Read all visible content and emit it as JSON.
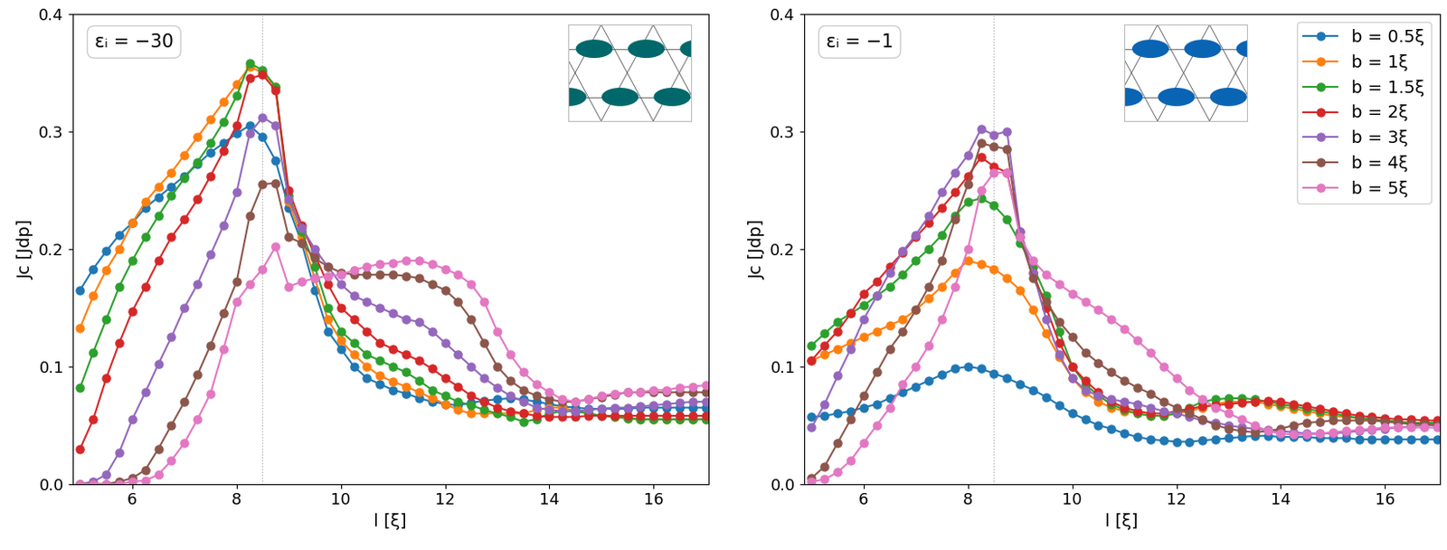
{
  "chart_data": [
    {
      "type": "line",
      "annotation": "εᵢ = −30",
      "x_label": "l [ξ]",
      "y_label": "Jc [Jdp]",
      "marker": "o",
      "line_style": "solid",
      "reference_x": 8.5,
      "xlim": [
        4.85,
        17.05
      ],
      "ylim": [
        0,
        0.4
      ],
      "xticks": [
        6,
        8,
        10,
        12,
        14,
        16
      ],
      "yticks": [
        {
          "value": 0,
          "label": "0.0"
        },
        {
          "value": 0.1,
          "label": "0.1"
        },
        {
          "value": 0.2,
          "label": "0.2"
        },
        {
          "value": 0.3,
          "label": "0.3"
        },
        {
          "value": 0.4,
          "label": "0.4"
        }
      ],
      "x": [
        5,
        5.25,
        5.5,
        5.75,
        6,
        6.25,
        6.5,
        6.75,
        7,
        7.25,
        7.5,
        7.75,
        8,
        8.25,
        8.5,
        8.75,
        9,
        9.25,
        9.5,
        9.75,
        10,
        10.25,
        10.5,
        10.75,
        11,
        11.25,
        11.5,
        11.75,
        12,
        12.25,
        12.5,
        12.75,
        13,
        13.25,
        13.5,
        13.75,
        14,
        14.25,
        14.5,
        14.75,
        15,
        15.25,
        15.5,
        15.75,
        16,
        16.25,
        16.5,
        16.75,
        17
      ],
      "series": [
        {
          "color": "#1f77b4",
          "values": [
            0.165,
            0.183,
            0.198,
            0.212,
            0.222,
            0.235,
            0.244,
            0.253,
            0.262,
            0.272,
            0.282,
            0.29,
            0.298,
            0.305,
            0.295,
            0.275,
            0.235,
            0.205,
            0.165,
            0.13,
            0.115,
            0.1,
            0.09,
            0.085,
            0.08,
            0.077,
            0.073,
            0.07,
            0.068,
            0.067,
            0.069,
            0.071,
            0.072,
            0.073,
            0.072,
            0.07,
            0.068,
            0.066,
            0.065,
            0.064,
            0.064,
            0.064,
            0.064,
            0.065,
            0.065,
            0.065,
            0.065,
            0.065,
            0.065
          ]
        },
        {
          "color": "#ff7f0e",
          "values": [
            0.133,
            0.16,
            0.182,
            0.2,
            0.222,
            0.24,
            0.253,
            0.265,
            0.28,
            0.295,
            0.31,
            0.325,
            0.34,
            0.355,
            0.35,
            0.338,
            0.24,
            0.21,
            0.175,
            0.14,
            0.122,
            0.11,
            0.1,
            0.092,
            0.087,
            0.083,
            0.078,
            0.073,
            0.068,
            0.063,
            0.06,
            0.06,
            0.06,
            0.06,
            0.06,
            0.063,
            0.065,
            0.065,
            0.062,
            0.06,
            0.058,
            0.057,
            0.056,
            0.055,
            0.055,
            0.055,
            0.055,
            0.055,
            0.055
          ]
        },
        {
          "color": "#2ca02c",
          "values": [
            0.082,
            0.112,
            0.14,
            0.168,
            0.19,
            0.21,
            0.228,
            0.245,
            0.26,
            0.274,
            0.29,
            0.308,
            0.33,
            0.358,
            0.352,
            0.338,
            0.245,
            0.215,
            0.185,
            0.15,
            0.13,
            0.12,
            0.11,
            0.105,
            0.1,
            0.095,
            0.088,
            0.08,
            0.075,
            0.07,
            0.067,
            0.063,
            0.06,
            0.057,
            0.053,
            0.055,
            0.06,
            0.062,
            0.062,
            0.06,
            0.058,
            0.057,
            0.056,
            0.055,
            0.055,
            0.055,
            0.055,
            0.055,
            0.055
          ]
        },
        {
          "color": "#d62728",
          "values": [
            0.03,
            0.055,
            0.09,
            0.12,
            0.147,
            0.168,
            0.19,
            0.21,
            0.225,
            0.242,
            0.262,
            0.283,
            0.305,
            0.345,
            0.348,
            0.335,
            0.25,
            0.22,
            0.195,
            0.17,
            0.15,
            0.14,
            0.13,
            0.12,
            0.115,
            0.11,
            0.105,
            0.098,
            0.09,
            0.083,
            0.075,
            0.07,
            0.065,
            0.062,
            0.06,
            0.058,
            0.057,
            0.057,
            0.057,
            0.058,
            0.058,
            0.058,
            0.058,
            0.058,
            0.058,
            0.058,
            0.058,
            0.058,
            0.058
          ]
        },
        {
          "color": "#9467bd",
          "values": [
            0.0,
            0.002,
            0.008,
            0.027,
            0.055,
            0.078,
            0.102,
            0.125,
            0.15,
            0.17,
            0.195,
            0.22,
            0.248,
            0.298,
            0.312,
            0.305,
            0.242,
            0.218,
            0.2,
            0.185,
            0.17,
            0.16,
            0.155,
            0.15,
            0.145,
            0.14,
            0.138,
            0.13,
            0.12,
            0.11,
            0.1,
            0.09,
            0.082,
            0.075,
            0.07,
            0.065,
            0.063,
            0.062,
            0.062,
            0.063,
            0.064,
            0.065,
            0.065,
            0.066,
            0.067,
            0.068,
            0.069,
            0.07,
            0.07
          ]
        },
        {
          "color": "#8c564b",
          "values": [
            0.0,
            0.0,
            0.0,
            0.002,
            0.005,
            0.012,
            0.03,
            0.05,
            0.07,
            0.093,
            0.118,
            0.145,
            0.172,
            0.228,
            0.255,
            0.256,
            0.21,
            0.205,
            0.192,
            0.185,
            0.18,
            0.178,
            0.178,
            0.178,
            0.178,
            0.177,
            0.175,
            0.17,
            0.165,
            0.155,
            0.14,
            0.12,
            0.1,
            0.088,
            0.08,
            0.075,
            0.072,
            0.07,
            0.07,
            0.072,
            0.074,
            0.076,
            0.078,
            0.078,
            0.078,
            0.078,
            0.078,
            0.078,
            0.078
          ]
        },
        {
          "color": "#e377c2",
          "values": [
            0.0,
            0.0,
            0.0,
            0.0,
            0.002,
            0.003,
            0.008,
            0.02,
            0.035,
            0.055,
            0.077,
            0.115,
            0.155,
            0.17,
            0.183,
            0.202,
            0.168,
            0.172,
            0.175,
            0.177,
            0.178,
            0.182,
            0.185,
            0.187,
            0.188,
            0.19,
            0.19,
            0.187,
            0.183,
            0.178,
            0.17,
            0.155,
            0.13,
            0.11,
            0.095,
            0.085,
            0.078,
            0.072,
            0.07,
            0.072,
            0.075,
            0.077,
            0.078,
            0.078,
            0.08,
            0.08,
            0.082,
            0.083,
            0.084
          ]
        }
      ]
    },
    {
      "type": "line",
      "annotation": "εᵢ = −1",
      "x_label": "l [ξ]",
      "y_label": "Jc [Jdp]",
      "marker": "o",
      "line_style": "solid",
      "reference_x": 8.5,
      "legend": "upper right",
      "xlim": [
        4.85,
        17.05
      ],
      "ylim": [
        0,
        0.4
      ],
      "xticks": [
        6,
        8,
        10,
        12,
        14,
        16
      ],
      "yticks": [
        {
          "value": 0,
          "label": "0.0"
        },
        {
          "value": 0.1,
          "label": "0.1"
        },
        {
          "value": 0.2,
          "label": "0.2"
        },
        {
          "value": 0.3,
          "label": "0.3"
        },
        {
          "value": 0.4,
          "label": "0.4"
        }
      ],
      "x": [
        5,
        5.25,
        5.5,
        5.75,
        6,
        6.25,
        6.5,
        6.75,
        7,
        7.25,
        7.5,
        7.75,
        8,
        8.25,
        8.5,
        8.75,
        9,
        9.25,
        9.5,
        9.75,
        10,
        10.25,
        10.5,
        10.75,
        11,
        11.25,
        11.5,
        11.75,
        12,
        12.25,
        12.5,
        12.75,
        13,
        13.25,
        13.5,
        13.75,
        14,
        14.25,
        14.5,
        14.75,
        15,
        15.25,
        15.5,
        15.75,
        16,
        16.25,
        16.5,
        16.75,
        17
      ],
      "series": [
        {
          "name": "b = 0.5ξ",
          "color": "#1f77b4",
          "values": [
            0.057,
            0.058,
            0.06,
            0.062,
            0.065,
            0.068,
            0.073,
            0.078,
            0.083,
            0.088,
            0.093,
            0.098,
            0.1,
            0.098,
            0.094,
            0.09,
            0.085,
            0.08,
            0.074,
            0.067,
            0.06,
            0.055,
            0.05,
            0.047,
            0.043,
            0.04,
            0.038,
            0.037,
            0.036,
            0.036,
            0.037,
            0.038,
            0.039,
            0.04,
            0.041,
            0.041,
            0.04,
            0.04,
            0.04,
            0.039,
            0.039,
            0.039,
            0.038,
            0.038,
            0.038,
            0.038,
            0.038,
            0.038,
            0.038
          ]
        },
        {
          "name": "b = 1ξ",
          "color": "#ff7f0e",
          "values": [
            0.105,
            0.11,
            0.115,
            0.12,
            0.125,
            0.13,
            0.135,
            0.14,
            0.148,
            0.158,
            0.168,
            0.18,
            0.19,
            0.187,
            0.183,
            0.175,
            0.165,
            0.148,
            0.128,
            0.108,
            0.09,
            0.078,
            0.07,
            0.065,
            0.062,
            0.06,
            0.058,
            0.058,
            0.06,
            0.062,
            0.065,
            0.068,
            0.07,
            0.07,
            0.07,
            0.068,
            0.066,
            0.064,
            0.062,
            0.06,
            0.058,
            0.057,
            0.056,
            0.055,
            0.054,
            0.053,
            0.052,
            0.052,
            0.052
          ]
        },
        {
          "name": "b = 1.5ξ",
          "color": "#2ca02c",
          "values": [
            0.118,
            0.128,
            0.138,
            0.145,
            0.152,
            0.16,
            0.168,
            0.178,
            0.19,
            0.2,
            0.212,
            0.228,
            0.24,
            0.243,
            0.237,
            0.225,
            0.205,
            0.185,
            0.16,
            0.13,
            0.1,
            0.085,
            0.075,
            0.068,
            0.063,
            0.06,
            0.058,
            0.058,
            0.06,
            0.065,
            0.07,
            0.072,
            0.073,
            0.073,
            0.072,
            0.07,
            0.068,
            0.066,
            0.064,
            0.062,
            0.06,
            0.058,
            0.056,
            0.055,
            0.054,
            0.053,
            0.052,
            0.052,
            0.052
          ]
        },
        {
          "name": "b = 2ξ",
          "color": "#d62728",
          "values": [
            0.105,
            0.118,
            0.13,
            0.145,
            0.162,
            0.172,
            0.185,
            0.197,
            0.21,
            0.222,
            0.235,
            0.248,
            0.262,
            0.278,
            0.27,
            0.265,
            0.215,
            0.18,
            0.15,
            0.12,
            0.1,
            0.088,
            0.078,
            0.07,
            0.065,
            0.062,
            0.06,
            0.06,
            0.062,
            0.064,
            0.066,
            0.067,
            0.068,
            0.069,
            0.07,
            0.071,
            0.07,
            0.068,
            0.066,
            0.064,
            0.062,
            0.06,
            0.058,
            0.057,
            0.056,
            0.055,
            0.055,
            0.054,
            0.054
          ]
        },
        {
          "name": "b = 3ξ",
          "color": "#9467bd",
          "values": [
            0.048,
            0.068,
            0.092,
            0.115,
            0.14,
            0.16,
            0.18,
            0.198,
            0.212,
            0.228,
            0.248,
            0.265,
            0.28,
            0.302,
            0.297,
            0.3,
            0.215,
            0.18,
            0.14,
            0.11,
            0.09,
            0.08,
            0.075,
            0.072,
            0.07,
            0.068,
            0.065,
            0.062,
            0.06,
            0.057,
            0.054,
            0.052,
            0.05,
            0.048,
            0.047,
            0.046,
            0.045,
            0.044,
            0.043,
            0.043,
            0.043,
            0.044,
            0.045,
            0.046,
            0.047,
            0.048,
            0.049,
            0.05,
            0.05
          ]
        },
        {
          "name": "b = 4ξ",
          "color": "#8c564b",
          "values": [
            0.005,
            0.015,
            0.035,
            0.055,
            0.075,
            0.095,
            0.115,
            0.13,
            0.148,
            0.168,
            0.19,
            0.225,
            0.255,
            0.29,
            0.287,
            0.285,
            0.21,
            0.175,
            0.155,
            0.138,
            0.125,
            0.112,
            0.103,
            0.095,
            0.088,
            0.082,
            0.077,
            0.07,
            0.065,
            0.06,
            0.055,
            0.05,
            0.047,
            0.045,
            0.044,
            0.045,
            0.047,
            0.05,
            0.052,
            0.053,
            0.054,
            0.054,
            0.054,
            0.054,
            0.053,
            0.052,
            0.051,
            0.051,
            0.05
          ]
        },
        {
          "name": "b = 5ξ",
          "color": "#e377c2",
          "values": [
            0.002,
            0.004,
            0.01,
            0.02,
            0.035,
            0.05,
            0.065,
            0.085,
            0.1,
            0.118,
            0.14,
            0.168,
            0.2,
            0.25,
            0.265,
            0.265,
            0.21,
            0.19,
            0.178,
            0.17,
            0.162,
            0.155,
            0.148,
            0.14,
            0.132,
            0.122,
            0.112,
            0.1,
            0.09,
            0.08,
            0.072,
            0.065,
            0.06,
            0.055,
            0.05,
            0.045,
            0.043,
            0.042,
            0.042,
            0.043,
            0.044,
            0.045,
            0.046,
            0.047,
            0.048,
            0.048,
            0.048,
            0.048,
            0.048
          ]
        }
      ]
    }
  ]
}
